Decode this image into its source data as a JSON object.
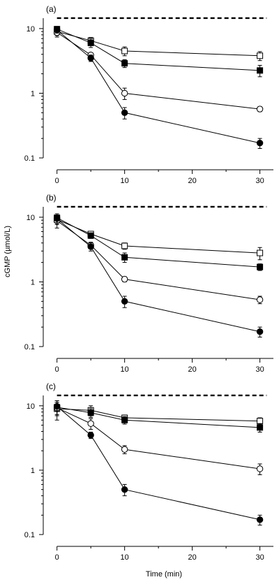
{
  "figure": {
    "ylabel": "cGMP (µmol/L)",
    "xlabel": "Time (min)"
  },
  "chart_data": [
    {
      "type": "line",
      "panel_label": "(a)",
      "yscale": "log",
      "ylim": [
        0.08,
        16
      ],
      "xlim": [
        -1,
        32
      ],
      "x_ticks": [
        "0",
        "10",
        "20",
        "30"
      ],
      "y_ticks": [
        "10",
        "1",
        "0.1"
      ],
      "reference_line": 14.5,
      "x": [
        0,
        5,
        10,
        30
      ],
      "series": [
        {
          "marker": "open-square",
          "values": [
            9.0,
            6.5,
            4.5,
            3.8
          ],
          "err": [
            1.2,
            0.8,
            0.7,
            0.6
          ]
        },
        {
          "marker": "filled-square",
          "values": [
            9.8,
            6.0,
            2.9,
            2.25
          ],
          "err": [
            1.0,
            0.9,
            0.4,
            0.45
          ]
        },
        {
          "marker": "open-circle",
          "values": [
            8.7,
            3.9,
            1.0,
            0.57
          ],
          "err": [
            1.3,
            0.3,
            0.2,
            0.05
          ]
        },
        {
          "marker": "filled-circle",
          "values": [
            9.5,
            3.5,
            0.5,
            0.17
          ],
          "err": [
            1.0,
            0.4,
            0.1,
            0.03
          ]
        }
      ]
    },
    {
      "type": "line",
      "panel_label": "(b)",
      "yscale": "log",
      "ylim": [
        0.08,
        16
      ],
      "xlim": [
        -1,
        32
      ],
      "x_ticks": [
        "0",
        "10",
        "20",
        "30"
      ],
      "y_ticks": [
        "10",
        "1",
        "0.1"
      ],
      "reference_line": 14.5,
      "x": [
        0,
        5,
        10,
        30
      ],
      "series": [
        {
          "marker": "open-square",
          "values": [
            9.2,
            5.5,
            3.6,
            2.8
          ],
          "err": [
            1.5,
            0.5,
            0.4,
            0.6
          ]
        },
        {
          "marker": "filled-square",
          "values": [
            9.8,
            5.2,
            2.4,
            1.7
          ],
          "err": [
            1.5,
            0.5,
            0.4,
            0.2
          ]
        },
        {
          "marker": "open-circle",
          "values": [
            8.8,
            3.7,
            1.1,
            0.53
          ],
          "err": [
            2.0,
            0.4,
            0.1,
            0.07
          ]
        },
        {
          "marker": "filled-circle",
          "values": [
            9.5,
            3.5,
            0.5,
            0.17
          ],
          "err": [
            1.3,
            0.5,
            0.1,
            0.03
          ]
        }
      ]
    },
    {
      "type": "line",
      "panel_label": "(c)",
      "yscale": "log",
      "ylim": [
        0.08,
        16
      ],
      "xlim": [
        -1,
        32
      ],
      "x_ticks": [
        "0",
        "10",
        "20",
        "30"
      ],
      "y_ticks": [
        "10",
        "1",
        "0.1"
      ],
      "reference_line": 14.5,
      "x": [
        0,
        5,
        10,
        30
      ],
      "series": [
        {
          "marker": "open-square",
          "values": [
            9.0,
            8.5,
            6.5,
            5.8
          ],
          "err": [
            3.0,
            1.5,
            0.7,
            0.7
          ]
        },
        {
          "marker": "filled-square",
          "values": [
            9.5,
            7.8,
            6.0,
            4.6
          ],
          "err": [
            2.5,
            1.2,
            0.8,
            0.7
          ]
        },
        {
          "marker": "open-circle",
          "values": [
            9.3,
            5.3,
            2.1,
            1.05
          ],
          "err": [
            2.0,
            1.0,
            0.3,
            0.2
          ]
        },
        {
          "marker": "filled-circle",
          "values": [
            9.8,
            3.5,
            0.5,
            0.17
          ],
          "err": [
            1.5,
            0.4,
            0.1,
            0.03
          ]
        }
      ]
    }
  ]
}
